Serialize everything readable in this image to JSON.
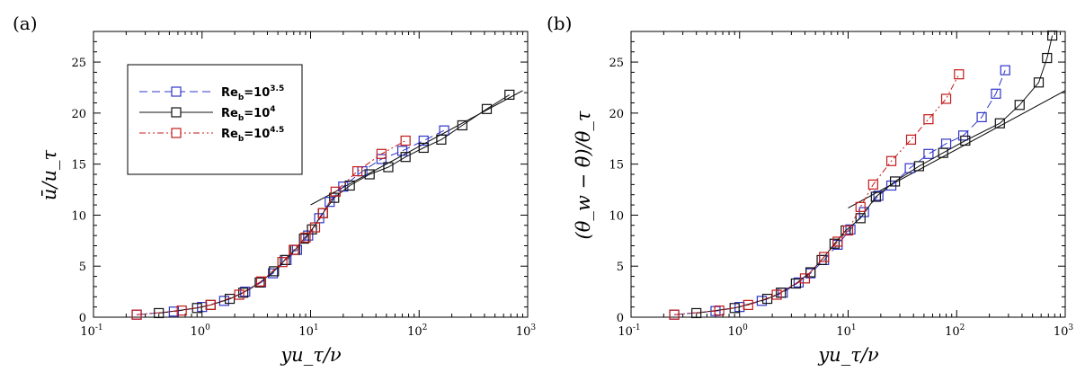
{
  "colors": {
    "re35": "#2f35c8",
    "re40": "#111111",
    "re45": "#c41a1a",
    "axis": "#000000"
  },
  "panels": [
    {
      "panel_label": "(a)",
      "ytitle": "ū/u_τ",
      "xtitle": "yu_τ/ν"
    },
    {
      "panel_label": "(b)",
      "ytitle": "(θ_w − θ̄)/θ_τ",
      "xtitle": "yu_τ/ν"
    }
  ],
  "legend": [
    {
      "base": "Re",
      "sub": "b",
      "mid": "=10",
      "sup": "3.5",
      "color": "#2f35c8",
      "dash": "9,5"
    },
    {
      "base": "Re",
      "sub": "b",
      "mid": "=10",
      "sup": "4",
      "color": "#111111",
      "dash": ""
    },
    {
      "base": "Re",
      "sub": "b",
      "mid": "=10",
      "sup": "4.5",
      "color": "#c41a1a",
      "dash": "7,3,2,3,2,3"
    }
  ],
  "x_ticks": [
    {
      "base": "10",
      "exp": "-1",
      "value": 0.1
    },
    {
      "base": "10",
      "exp": "0",
      "value": 1
    },
    {
      "base": "10",
      "exp": "1",
      "value": 10
    },
    {
      "base": "10",
      "exp": "2",
      "value": 100
    },
    {
      "base": "10",
      "exp": "3",
      "value": 1000
    }
  ],
  "y_ticks": [
    "0",
    "5",
    "10",
    "15",
    "20",
    "25"
  ],
  "chart_data": [
    {
      "type": "line",
      "title": "(a)",
      "xlabel": "yu_τ/ν",
      "ylabel": "ū/u_τ",
      "xscale": "log",
      "xlim": [
        0.1,
        1000
      ],
      "ylim": [
        0,
        28
      ],
      "legend_position": "top-left",
      "reference_lines": [
        {
          "name": "log law",
          "x": [
            10,
            900
          ],
          "y": [
            11.0,
            22.2
          ]
        }
      ],
      "series": [
        {
          "name": "Re_b=10^3.5",
          "color": "#2f35c8",
          "dash": "9,5",
          "x": [
            0.25,
            0.55,
            1.0,
            1.6,
            2.5,
            3.5,
            4.5,
            6.0,
            7.5,
            9.5,
            12,
            15,
            20,
            30,
            45,
            70,
            110,
            170
          ],
          "y": [
            0.25,
            0.55,
            1.0,
            1.6,
            2.5,
            3.4,
            4.3,
            5.6,
            6.6,
            8.0,
            9.7,
            11.3,
            12.8,
            14.3,
            15.5,
            16.3,
            17.3,
            18.3
          ]
        },
        {
          "name": "Re_b=10^4",
          "color": "#111111",
          "dash": "",
          "x": [
            0.4,
            0.9,
            1.2,
            1.8,
            2.4,
            3.4,
            4.6,
            5.8,
            7.2,
            8.7,
            10.3,
            13,
            16.5,
            23,
            35,
            52,
            75,
            110,
            160,
            250,
            420,
            680
          ],
          "y": [
            0.4,
            0.9,
            1.2,
            1.8,
            2.4,
            3.4,
            4.5,
            5.6,
            6.6,
            7.7,
            8.6,
            10.2,
            11.7,
            12.9,
            14.0,
            14.7,
            15.7,
            16.6,
            17.4,
            18.8,
            20.4,
            21.8
          ]
        },
        {
          "name": "Re_b=10^4.5",
          "color": "#c41a1a",
          "dash": "7,3,2,3,2,3",
          "x": [
            0.25,
            0.65,
            1.2,
            2.2,
            3.5,
            5.5,
            7.0,
            9.0,
            11,
            13,
            17,
            27,
            45,
            75
          ],
          "y": [
            0.25,
            0.65,
            1.2,
            2.2,
            3.5,
            5.4,
            6.6,
            7.8,
            8.8,
            10.2,
            12.3,
            14.3,
            16.0,
            17.3
          ]
        }
      ]
    },
    {
      "type": "line",
      "title": "(b)",
      "xlabel": "yu_τ/ν",
      "ylabel": "(θ_w − θ̄)/θ_τ",
      "xscale": "log",
      "xlim": [
        0.1,
        1000
      ],
      "ylim": [
        0,
        28
      ],
      "reference_lines": [
        {
          "name": "log law",
          "x": [
            10,
            1000
          ],
          "y": [
            10.7,
            22.2
          ]
        }
      ],
      "series": [
        {
          "name": "Re_b=10^3.5",
          "color": "#2f35c8",
          "dash": "9,5",
          "x": [
            0.25,
            0.6,
            1.0,
            1.6,
            2.5,
            3.5,
            4.5,
            6.0,
            8.0,
            10.5,
            14,
            19,
            25,
            37,
            55,
            80,
            115,
            170,
            230,
            280
          ],
          "y": [
            0.25,
            0.6,
            1.0,
            1.6,
            2.4,
            3.4,
            4.3,
            5.6,
            7.1,
            8.6,
            10.3,
            11.9,
            12.9,
            14.6,
            16.0,
            17.0,
            17.8,
            19.6,
            21.9,
            24.2
          ]
        },
        {
          "name": "Re_b=10^4",
          "color": "#111111",
          "dash": "",
          "x": [
            0.4,
            0.9,
            1.8,
            2.4,
            3.3,
            4.5,
            5.7,
            7.5,
            9.5,
            13,
            18,
            27,
            45,
            75,
            120,
            250,
            380,
            570,
            680,
            760
          ],
          "y": [
            0.4,
            0.9,
            1.8,
            2.4,
            3.3,
            4.4,
            5.6,
            7.2,
            8.5,
            9.7,
            11.8,
            13.3,
            14.8,
            16.1,
            17.3,
            19.0,
            20.8,
            23.0,
            25.4,
            27.6
          ]
        },
        {
          "name": "Re_b=10^4.5",
          "color": "#c41a1a",
          "dash": "7,3,2,3,2,3",
          "x": [
            0.25,
            0.65,
            1.2,
            2.2,
            4.0,
            6.0,
            8.0,
            10,
            13,
            17,
            25,
            38,
            55,
            80,
            105
          ],
          "y": [
            0.25,
            0.65,
            1.2,
            2.2,
            3.8,
            5.9,
            7.4,
            8.5,
            10.8,
            13.0,
            15.3,
            17.4,
            19.4,
            21.4,
            23.8
          ]
        }
      ]
    }
  ]
}
